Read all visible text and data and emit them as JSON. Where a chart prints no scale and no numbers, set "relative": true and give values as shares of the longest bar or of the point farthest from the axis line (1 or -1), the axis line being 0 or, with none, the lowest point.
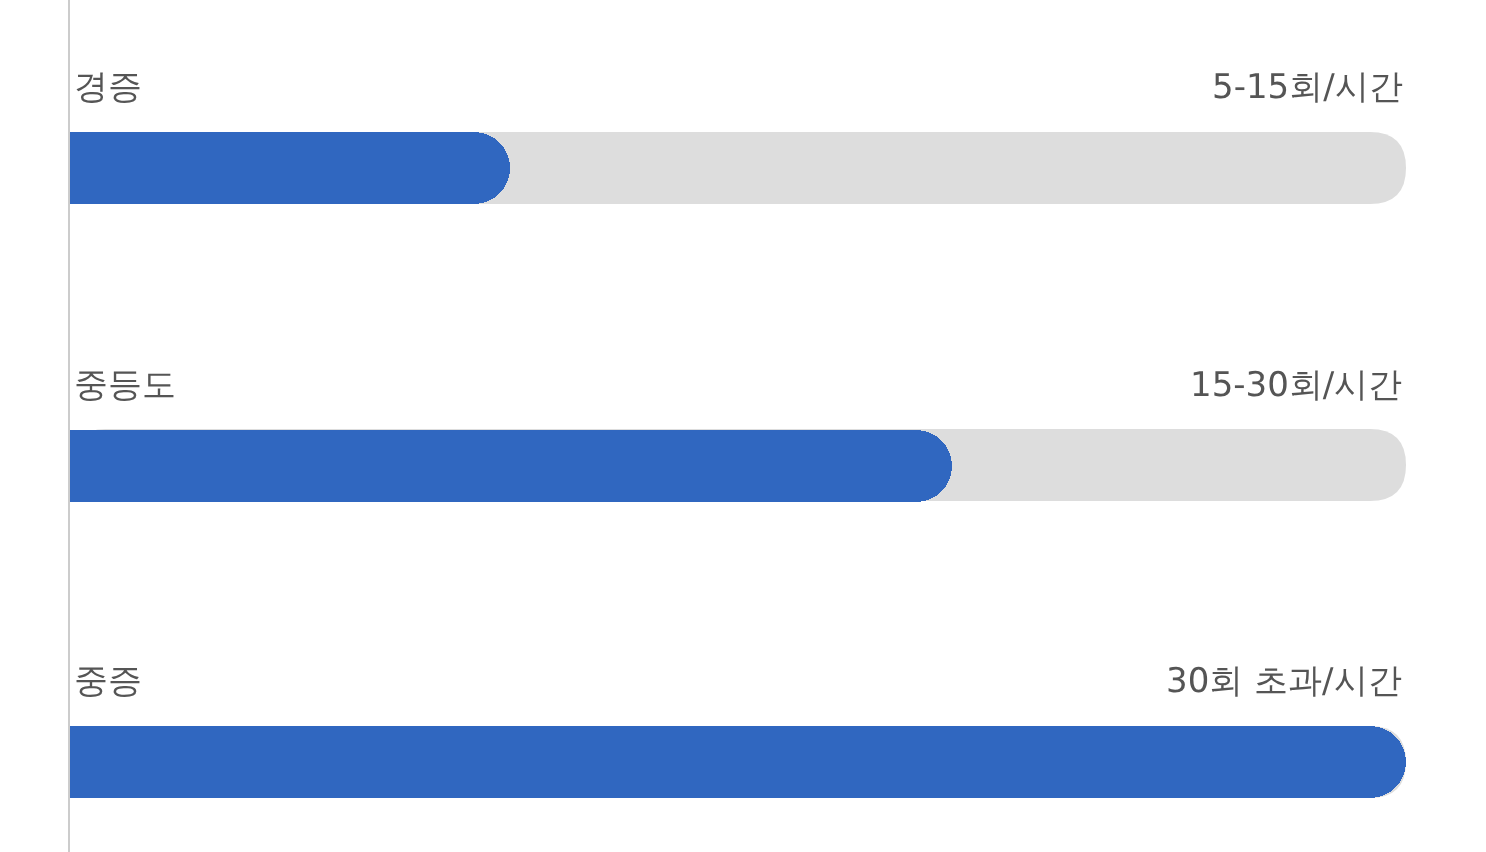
{
  "chart_data": {
    "type": "bar",
    "orientation": "horizontal",
    "relative": true,
    "categories": [
      "경증",
      "중등도",
      "중증"
    ],
    "values": [
      0.33,
      0.66,
      1.0
    ],
    "annotations": [
      "5-15회/시간",
      "15-30회/시간",
      "30회 초과/시간"
    ],
    "color": "#3067c0",
    "legend": false
  }
}
